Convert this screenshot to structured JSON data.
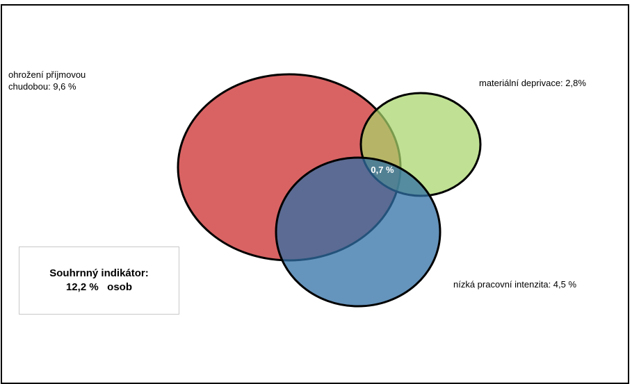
{
  "labels": {
    "poverty_line1": "ohrožení příjmovou",
    "poverty_line2": "chudobou:   9,6 %",
    "deprivation": "materiální deprivace: 2,8%",
    "low_work_intensity": "nízká pracovní intenzita: 4,5 %",
    "intersection": "0,7 %"
  },
  "summary": {
    "line1": "Souhrnný indikátor:",
    "line2": "12,2 %   osob"
  },
  "sets": [
    {
      "name": "ohrožení příjmovou chudobou",
      "value_percent": 9.6,
      "color": "#d55252"
    },
    {
      "name": "materiální deprivace",
      "value_percent": 2.8,
      "color": "#b5dd7e"
    },
    {
      "name": "nízká pracovní intenzita",
      "value_percent": 4.5,
      "color": "#4d88b8"
    }
  ],
  "intersection_all_percent": 0.7,
  "colors": {
    "poverty_fill": "#d55252",
    "deprivation_fill": "#b5dd7e",
    "work_fill": "#4d88b8",
    "outline": "#000000",
    "frame": "#000000",
    "summary_border": "#c8c8c8"
  }
}
